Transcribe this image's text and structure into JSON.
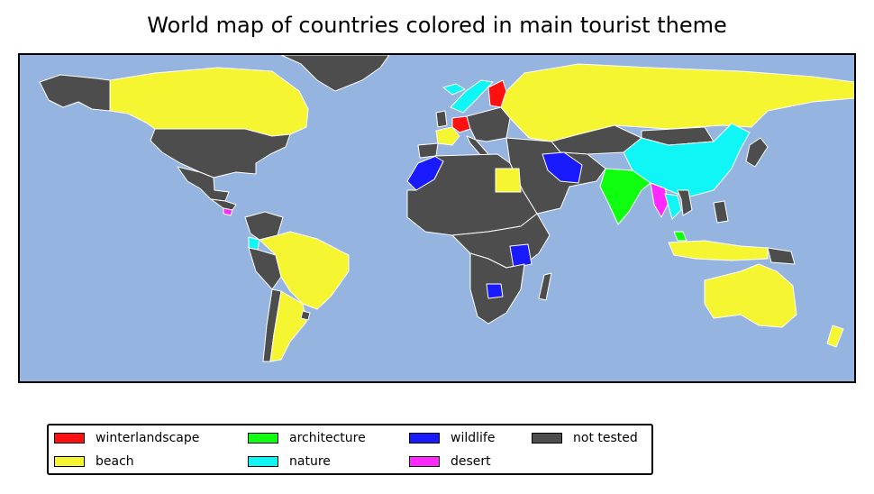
{
  "title": "World map of countries colored in main tourist theme",
  "legend": [
    {
      "label": "winterlandscape",
      "color": "#ff1010"
    },
    {
      "label": "architecture",
      "color": "#10ff10"
    },
    {
      "label": "wildlife",
      "color": "#1a1aff"
    },
    {
      "label": "not tested",
      "color": "#4d4d4d"
    },
    {
      "label": "beach",
      "color": "#f5f532"
    },
    {
      "label": "nature",
      "color": "#10f5f5"
    },
    {
      "label": "desert",
      "color": "#ff28ff"
    }
  ],
  "regions": [
    {
      "name": "Canada",
      "category": "beach"
    },
    {
      "name": "Alaska",
      "category": "not tested"
    },
    {
      "name": "Greenland",
      "category": "not tested"
    },
    {
      "name": "United States",
      "category": "not tested"
    },
    {
      "name": "Mexico",
      "category": "not tested"
    },
    {
      "name": "Central America",
      "category": "not tested"
    },
    {
      "name": "Costa Rica",
      "category": "desert"
    },
    {
      "name": "Brazil",
      "category": "beach"
    },
    {
      "name": "Argentina",
      "category": "beach"
    },
    {
      "name": "Chile",
      "category": "not tested"
    },
    {
      "name": "Peru",
      "category": "not tested"
    },
    {
      "name": "Ecuador",
      "category": "nature"
    },
    {
      "name": "Colombia",
      "category": "not tested"
    },
    {
      "name": "Uruguay",
      "category": "not tested"
    },
    {
      "name": "Norway",
      "category": "nature"
    },
    {
      "name": "Finland",
      "category": "winterlandscape"
    },
    {
      "name": "Germany",
      "category": "winterlandscape"
    },
    {
      "name": "France",
      "category": "beach"
    },
    {
      "name": "Spain",
      "category": "not tested"
    },
    {
      "name": "Italy",
      "category": "not tested"
    },
    {
      "name": "Eastern Europe",
      "category": "not tested"
    },
    {
      "name": "Hungary",
      "category": "architecture"
    },
    {
      "name": "Russia",
      "category": "beach"
    },
    {
      "name": "Kazakhstan",
      "category": "not tested"
    },
    {
      "name": "Mongolia",
      "category": "not tested"
    },
    {
      "name": "China",
      "category": "nature"
    },
    {
      "name": "Iran",
      "category": "wildlife"
    },
    {
      "name": "Middle East",
      "category": "not tested"
    },
    {
      "name": "India",
      "category": "architecture"
    },
    {
      "name": "Myanmar",
      "category": "desert"
    },
    {
      "name": "Thailand",
      "category": "nature"
    },
    {
      "name": "Vietnam",
      "category": "not tested"
    },
    {
      "name": "Malaysia",
      "category": "architecture"
    },
    {
      "name": "Indonesia",
      "category": "beach"
    },
    {
      "name": "Papua New Guinea",
      "category": "not tested"
    },
    {
      "name": "Philippines",
      "category": "not tested"
    },
    {
      "name": "Japan",
      "category": "not tested"
    },
    {
      "name": "Morocco",
      "category": "wildlife"
    },
    {
      "name": "Egypt",
      "category": "beach"
    },
    {
      "name": "North Africa",
      "category": "not tested"
    },
    {
      "name": "Central Africa",
      "category": "not tested"
    },
    {
      "name": "Tanzania",
      "category": "wildlife"
    },
    {
      "name": "Zimbabwe",
      "category": "wildlife"
    },
    {
      "name": "Southern Africa",
      "category": "not tested"
    },
    {
      "name": "Madagascar",
      "category": "not tested"
    },
    {
      "name": "Australia",
      "category": "beach"
    },
    {
      "name": "New Zealand",
      "category": "beach"
    },
    {
      "name": "Iceland",
      "category": "nature"
    },
    {
      "name": "United Kingdom",
      "category": "not tested"
    }
  ]
}
